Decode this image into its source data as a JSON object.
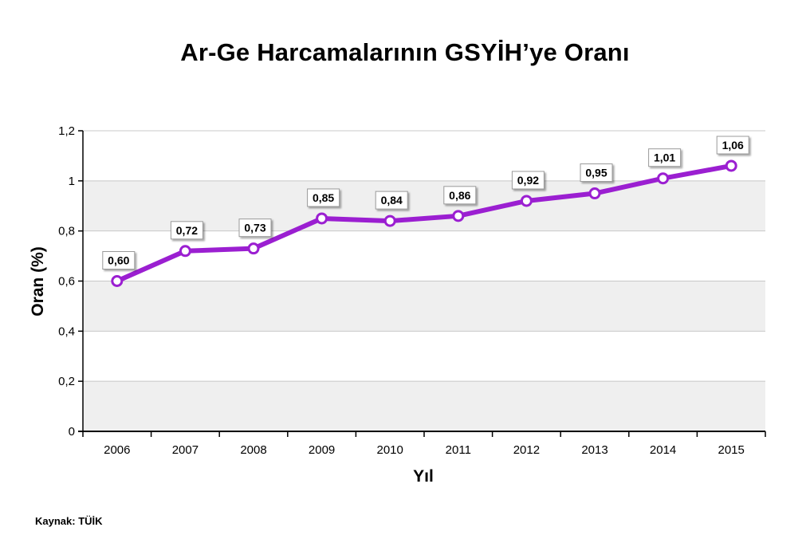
{
  "title": "Ar-Ge Harcamalarının GSYİH’ye Oranı",
  "source": "Kaynak: TÜİK",
  "colors": {
    "line": "#9b1fd1",
    "band": "#efefef",
    "grid": "#c8c8c8"
  },
  "chart_data": {
    "type": "line",
    "title": "Ar-Ge Harcamalarının GSYİH’ye Oranı",
    "xlabel": "Yıl",
    "ylabel": "Oran (%)",
    "categories": [
      "2006",
      "2007",
      "2008",
      "2009",
      "2010",
      "2011",
      "2012",
      "2013",
      "2014",
      "2015"
    ],
    "series": [
      {
        "values": [
          0.6,
          0.72,
          0.73,
          0.85,
          0.84,
          0.86,
          0.92,
          0.95,
          1.01,
          1.06
        ]
      }
    ],
    "data_labels": [
      "0,60",
      "0,72",
      "0,73",
      "0,85",
      "0,84",
      "0,86",
      "0,92",
      "0,95",
      "1,01",
      "1,06"
    ],
    "ylim": [
      0,
      1.2
    ],
    "yticks": [
      0,
      0.2,
      0.4,
      0.6,
      0.8,
      1.0,
      1.2
    ],
    "ytick_labels": [
      "0",
      "0,2",
      "0,4",
      "0,6",
      "0,8",
      "1",
      "1,2"
    ],
    "grid": true,
    "legend": "none"
  }
}
